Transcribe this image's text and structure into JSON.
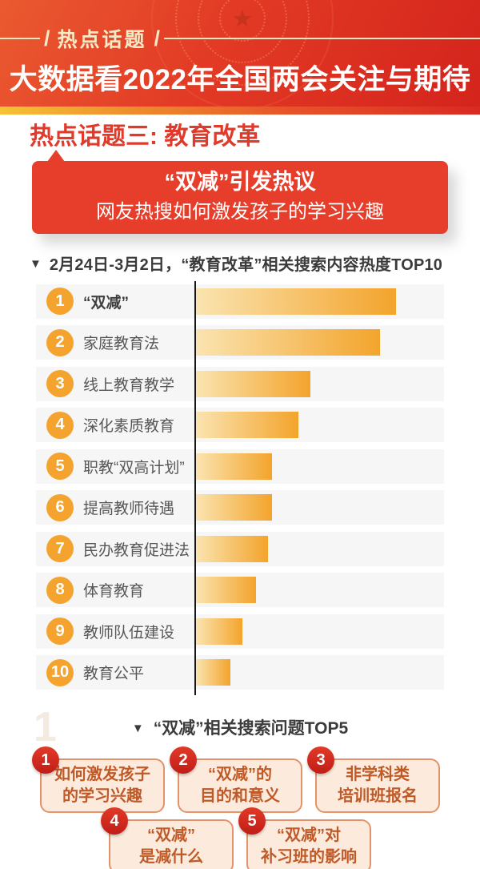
{
  "header": {
    "tag": "热点话题",
    "slash_left": "/",
    "slash_right": "/",
    "title": "大数据看2022年全国两会关注与期待"
  },
  "section": {
    "title": "热点话题三: 教育改革"
  },
  "banner": {
    "line1": "“双减”引发热议",
    "line2": "网友热搜如何激发孩子的学习兴趣"
  },
  "chart_data": {
    "type": "bar",
    "orientation": "horizontal",
    "marker": "▼",
    "title": "2月24日-3月2日，“教育改革”相关搜索内容热度TOP10",
    "categories": [
      "“双减”",
      "家庭教育法",
      "线上教育教学",
      "深化素质教育",
      "职教“双高计划”",
      "提高教师待遇",
      "民办教育促进法",
      "体育教育",
      "教师队伍建设",
      "教育公平"
    ],
    "ranks": [
      "1",
      "2",
      "3",
      "4",
      "5",
      "6",
      "7",
      "8",
      "9",
      "10"
    ],
    "values": [
      100,
      92,
      57,
      51,
      38,
      38,
      36,
      30,
      23,
      17
    ],
    "value_note": "relative search-heat index estimated from bar lengths (max bar = 100); no numeric data labels shown in image",
    "xlim": [
      0,
      100
    ],
    "grid": false,
    "data_labels": false,
    "legend": false,
    "bar_color_start": "#fae4b0",
    "bar_color_end": "#f3a42c"
  },
  "top5": {
    "marker": "▼",
    "title": "“双减”相关搜索问题TOP5",
    "items": [
      {
        "rank": "1",
        "line1": "如何激发孩子",
        "line2": "的学习兴趣"
      },
      {
        "rank": "2",
        "line1": "“双减”的",
        "line2": "目的和意义"
      },
      {
        "rank": "3",
        "line1": "非学科类",
        "line2": "培训班报名"
      },
      {
        "rank": "4",
        "line1": "“双减”",
        "line2": "是减什么"
      },
      {
        "rank": "5",
        "line1": "“双减”对",
        "line2": "补习班的影响"
      }
    ]
  },
  "watermark": "1",
  "colors": {
    "header_red": "#e23a25",
    "accent_red": "#e03a2a",
    "banner_red": "#e73e2c",
    "strip_yellow": "#f6c336",
    "strip_red": "#d92a22",
    "bar_orange": "#f3a42c",
    "bar_light": "#fae4b0",
    "rank_circle_orange": "#f4a42e",
    "row_bg": "#f6f6f6",
    "axis_black": "#161616",
    "card_border": "#e2936b",
    "card_bg": "#fcebdc",
    "card_text": "#bf5a28",
    "badge_red": "#d0231b",
    "tag_cream": "#f8e9c6"
  }
}
